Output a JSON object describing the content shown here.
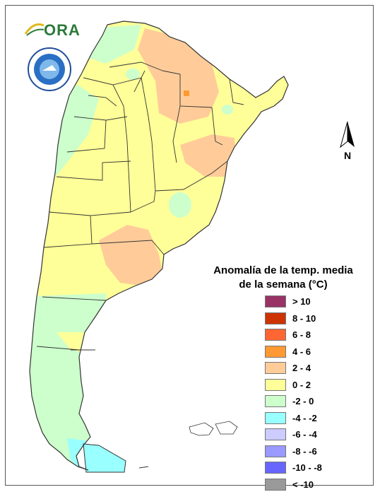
{
  "header": {
    "logo_text": "ORA",
    "seal": "smn-argentina-seal"
  },
  "compass": {
    "label": "N",
    "icon": "north-arrow-icon"
  },
  "legend": {
    "title_line1": "Anomalía de la temp. media",
    "title_line2": "de la semana (°C)",
    "items": [
      {
        "label": "> 10",
        "color": "#993366"
      },
      {
        "label": "8 - 10",
        "color": "#cc3300"
      },
      {
        "label": "6 - 8",
        "color": "#ff6633"
      },
      {
        "label": "4 - 6",
        "color": "#ff9933"
      },
      {
        "label": "2 - 4",
        "color": "#ffcc99"
      },
      {
        "label": "0 - 2",
        "color": "#ffff99"
      },
      {
        "label": "-2 - 0",
        "color": "#ccffcc"
      },
      {
        "label": "-4 - -2",
        "color": "#99ffff"
      },
      {
        "label": "-6 - -4",
        "color": "#ccccff"
      },
      {
        "label": "-8 - -6",
        "color": "#9999ff"
      },
      {
        "label": "-10 - -8",
        "color": "#6666ff"
      },
      {
        "label": "< -10",
        "color": "#999999"
      }
    ]
  },
  "map": {
    "colors": {
      "base": "#ffff99",
      "warm": "#ffcc99",
      "hot": "#ff9933",
      "cool": "#ccffcc",
      "cold": "#99ffff",
      "boundary": "#333333"
    }
  }
}
